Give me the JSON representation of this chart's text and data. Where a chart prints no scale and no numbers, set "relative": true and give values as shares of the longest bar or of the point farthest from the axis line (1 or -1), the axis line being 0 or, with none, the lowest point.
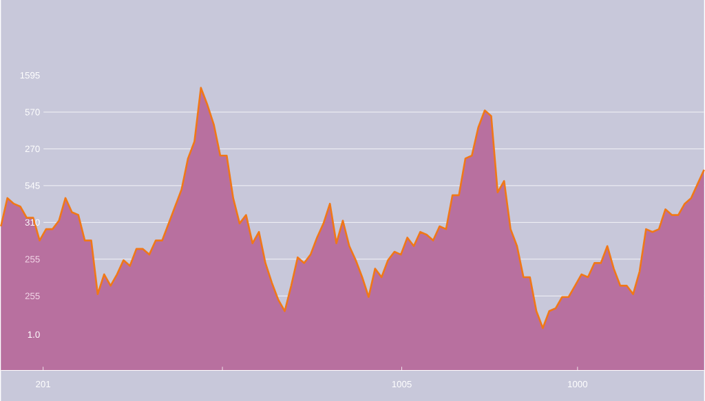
{
  "chart_data": {
    "type": "area",
    "relative": true,
    "grid": "y",
    "categories": [
      null,
      null,
      null,
      null,
      null,
      null,
      null,
      null,
      null,
      null,
      null,
      null,
      null,
      null,
      null,
      null,
      null,
      null,
      null,
      null,
      null,
      null,
      null,
      null,
      null,
      null,
      null,
      null,
      null,
      null,
      null,
      null,
      null,
      null,
      null,
      null,
      null,
      null,
      null,
      null,
      null,
      null,
      null,
      null,
      null,
      null,
      null,
      null,
      null,
      null,
      null,
      null,
      null,
      null,
      null,
      null,
      null,
      null,
      null,
      null,
      null,
      null,
      null,
      null,
      null,
      null,
      null,
      null,
      null,
      null,
      null,
      null,
      null,
      null,
      null,
      null,
      null,
      null,
      null,
      null,
      null,
      null,
      null,
      null,
      null,
      null,
      null,
      null,
      null,
      null,
      null,
      null,
      null,
      null,
      null,
      null,
      null,
      null,
      null,
      null,
      null,
      null,
      null,
      null,
      null,
      null,
      null,
      null,
      null,
      null
    ],
    "annotations": [
      "1595",
      "570",
      "270",
      "545",
      "310",
      "255",
      "255",
      "1.0",
      "201",
      "1005",
      "1000"
    ],
    "series": [
      {
        "color": "#f07818",
        "values": [
          0.51,
          0.61,
          0.59,
          0.58,
          0.54,
          0.54,
          0.46,
          0.5,
          0.5,
          0.53,
          0.61,
          0.56,
          0.55,
          0.46,
          0.46,
          0.27,
          0.34,
          0.3,
          0.34,
          0.39,
          0.37,
          0.43,
          0.43,
          0.41,
          0.46,
          0.46,
          0.52,
          0.58,
          0.64,
          0.75,
          0.81,
          1,
          0.94,
          0.87,
          0.76,
          0.76,
          0.61,
          0.52,
          0.55,
          0.45,
          0.49,
          0.38,
          0.31,
          0.25,
          0.21,
          0.3,
          0.4,
          0.38,
          0.41,
          0.47,
          0.52,
          0.59,
          0.45,
          0.53,
          0.44,
          0.39,
          0.33,
          0.26,
          0.36,
          0.33,
          0.39,
          0.42,
          0.41,
          0.47,
          0.44,
          0.49,
          0.48,
          0.46,
          0.51,
          0.5,
          0.62,
          0.62,
          0.75,
          0.76,
          0.86,
          0.92,
          0.9,
          0.63,
          0.67,
          0.5,
          0.44,
          0.33,
          0.33,
          0.21,
          0.15,
          0.21,
          0.22,
          0.26,
          0.26,
          0.3,
          0.34,
          0.33,
          0.38,
          0.38,
          0.44,
          0.36,
          0.3,
          0.3,
          0.27,
          0.35,
          0.5,
          0.49,
          0.5,
          0.57,
          0.55,
          0.55,
          0.59,
          0.61,
          0.66,
          0.71
        ]
      }
    ]
  }
}
